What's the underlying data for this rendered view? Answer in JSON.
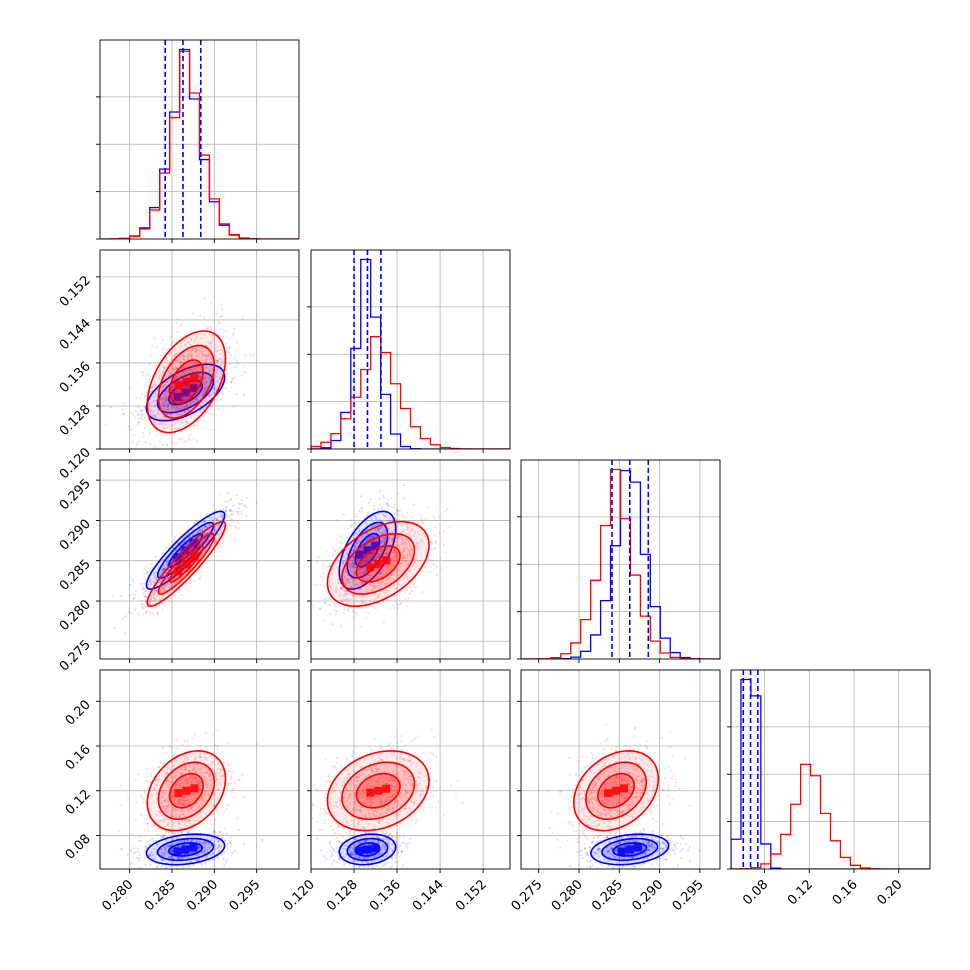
{
  "chart_data": {
    "type": "corner",
    "grid": true,
    "colors": {
      "a": "#0000ff",
      "b": "#ff0000"
    },
    "quantiles_color": "#0000ff",
    "parameters": [
      {
        "range": [
          0.2765,
          0.3
        ],
        "ticks": [
          "0.280",
          "0.285",
          "0.290",
          "0.295"
        ],
        "tick_values": [
          0.28,
          0.285,
          0.29,
          0.295
        ]
      },
      {
        "range": [
          0.12,
          0.157
        ],
        "ticks": [
          "0.120",
          "0.128",
          "0.136",
          "0.144",
          "0.152"
        ],
        "tick_values": [
          0.12,
          0.128,
          0.136,
          0.144,
          0.152
        ]
      },
      {
        "range": [
          0.2728,
          0.2975
        ],
        "ticks": [
          "0.275",
          "0.280",
          "0.285",
          "0.290",
          "0.295"
        ],
        "tick_values": [
          0.275,
          0.28,
          0.285,
          0.29,
          0.295
        ]
      },
      {
        "range": [
          0.05,
          0.228
        ],
        "ticks": [
          "0.08",
          "0.12",
          "0.16",
          "0.20"
        ],
        "tick_values": [
          0.08,
          0.12,
          0.16,
          0.2
        ]
      }
    ],
    "series": [
      {
        "color": "#0000ff",
        "mean": [
          0.2866,
          0.1305,
          0.2863,
          0.0675
        ],
        "std": [
          0.0022,
          0.0025,
          0.0023,
          0.0065
        ],
        "corr": [
          [
            1,
            0.55,
            0.9,
            0.25
          ],
          [
            0.55,
            1,
            0.55,
            0.15
          ],
          [
            0.9,
            0.55,
            1,
            0.25
          ],
          [
            0.25,
            0.15,
            0.25,
            1
          ]
        ],
        "quantiles": [
          [
            0.2842,
            0.2863,
            0.2884
          ],
          [
            0.128,
            0.1305,
            0.133
          ],
          [
            0.2841,
            0.2863,
            0.2886
          ],
          [
            0.061,
            0.0675,
            0.074
          ]
        ]
      },
      {
        "color": "#ff0000",
        "mean": [
          0.2867,
          0.1325,
          0.2846,
          0.12
        ],
        "std": [
          0.0022,
          0.0045,
          0.0025,
          0.017
        ],
        "corr": [
          [
            1,
            0.45,
            0.92,
            0.3
          ],
          [
            0.45,
            1,
            0.45,
            0.25
          ],
          [
            0.92,
            0.45,
            1,
            0.3
          ],
          [
            0.3,
            0.25,
            0.3,
            1
          ]
        ]
      }
    ]
  }
}
